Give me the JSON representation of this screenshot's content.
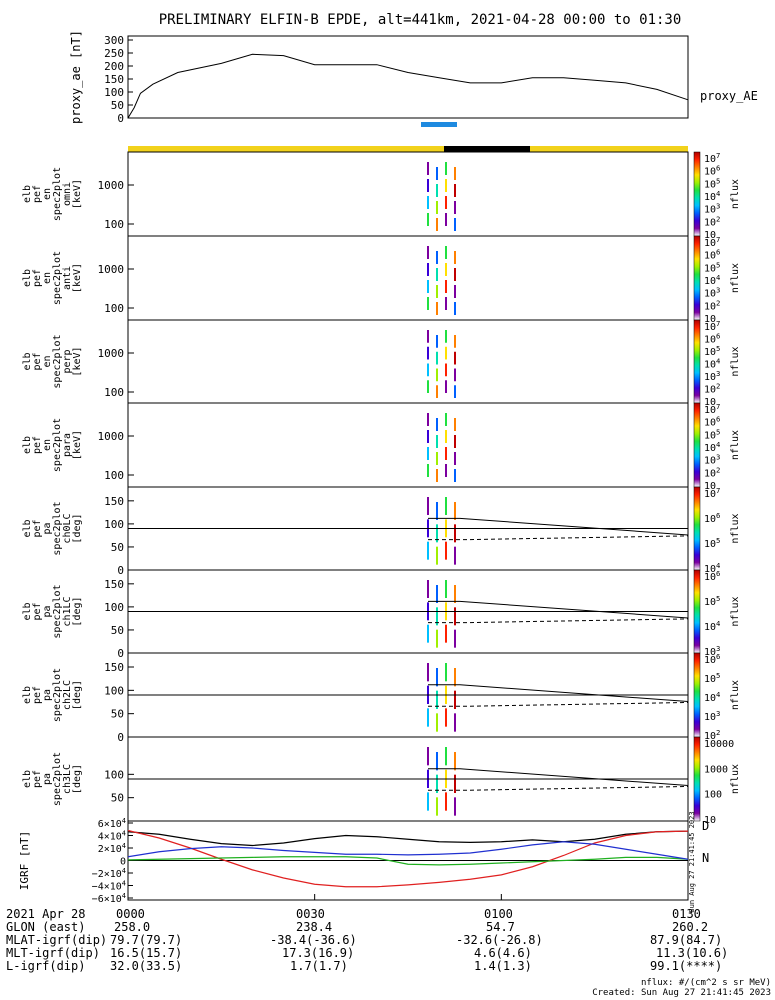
{
  "title": "PRELIMINARY ELFIN-B EPDE, alt=441km, 2021-04-28 00:00 to 01:30",
  "colors": {
    "yellow_bar": "#f2d21c",
    "eclipse_bar": "#000000",
    "science_bar": "#1e8ae0",
    "bx": "#e02020",
    "by": "#20b020",
    "bz": "#2030d0",
    "btot": "#000000"
  },
  "chart_data": [
    {
      "type": "line",
      "id": "proxy_ae",
      "ylabel": "proxy_ae [nT]",
      "series_label": "proxy_AE",
      "yticks": [
        "300",
        "250",
        "200",
        "150",
        "100",
        "50",
        "0"
      ],
      "ylim": [
        0,
        300
      ],
      "x_minutes": [
        0,
        1,
        2,
        4,
        8,
        15,
        20,
        25,
        30,
        35,
        40,
        45,
        50,
        55,
        60,
        65,
        70,
        75,
        80,
        85,
        90
      ],
      "values": [
        0,
        40,
        95,
        130,
        175,
        210,
        245,
        240,
        205,
        205,
        205,
        175,
        155,
        135,
        135,
        155,
        155,
        145,
        135,
        110,
        70
      ]
    },
    {
      "type": "heatmap",
      "id": "en-omni",
      "ylabel": "elb pef en spec2plot omni [keV]",
      "yticks": [
        "1000",
        "100"
      ],
      "colorbar_label": "nflux",
      "colorbar_ticks": [
        "10^7",
        "10^6",
        "10^5",
        "10^4",
        "10^3",
        "10^2",
        "10"
      ]
    },
    {
      "type": "heatmap",
      "id": "en-anti",
      "ylabel": "elb pef en spec2plot anti [keV]",
      "yticks": [
        "1000",
        "100"
      ],
      "colorbar_label": "nflux",
      "colorbar_ticks": [
        "10^7",
        "10^6",
        "10^5",
        "10^4",
        "10^3",
        "10^2",
        "10"
      ]
    },
    {
      "type": "heatmap",
      "id": "en-perp",
      "ylabel": "elb pef en spec2plot perp [keV]",
      "yticks": [
        "1000",
        "100"
      ],
      "colorbar_label": "nflux",
      "colorbar_ticks": [
        "10^7",
        "10^6",
        "10^5",
        "10^4",
        "10^3",
        "10^2",
        "10"
      ]
    },
    {
      "type": "heatmap",
      "id": "en-para",
      "ylabel": "elb pef en spec2plot para [keV]",
      "yticks": [
        "1000",
        "100"
      ],
      "colorbar_label": "nflux",
      "colorbar_ticks": [
        "10^7",
        "10^6",
        "10^5",
        "10^4",
        "10^3",
        "10^2",
        "10"
      ]
    },
    {
      "type": "heatmap",
      "id": "pa-ch0LC",
      "ylabel": "elb pef pa spec2plot ch0LC [deg]",
      "yticks": [
        "150",
        "100",
        "50",
        "0"
      ],
      "ylim": [
        0,
        180
      ],
      "colorbar_label": "nflux",
      "colorbar_ticks": [
        "10^7",
        "10^6",
        "10^5",
        "10^4"
      ]
    },
    {
      "type": "heatmap",
      "id": "pa-ch1LC",
      "ylabel": "elb pef pa spec2plot ch1LC [deg]",
      "yticks": [
        "150",
        "100",
        "50",
        "0"
      ],
      "ylim": [
        0,
        180
      ],
      "colorbar_label": "nflux",
      "colorbar_ticks": [
        "10^6",
        "10^5",
        "10^4",
        "10^3"
      ]
    },
    {
      "type": "heatmap",
      "id": "pa-ch2LC",
      "ylabel": "elb pef pa spec2plot ch2LC [deg]",
      "yticks": [
        "150",
        "100",
        "50",
        "0"
      ],
      "ylim": [
        0,
        180
      ],
      "colorbar_label": "nflux",
      "colorbar_ticks": [
        "10^6",
        "10^5",
        "10^4",
        "10^3",
        "10^2"
      ]
    },
    {
      "type": "heatmap",
      "id": "pa-ch3LC",
      "ylabel": "elb pef pa spec2plot ch3LC [deg]",
      "yticks": [
        "100",
        "50"
      ],
      "ylim": [
        0,
        180
      ],
      "colorbar_label": "nflux",
      "colorbar_ticks": [
        "10000",
        "1000",
        "100",
        "10"
      ]
    },
    {
      "type": "line",
      "id": "igrf",
      "ylabel": "IGRF [nT]",
      "yticks": [
        "6×10^4",
        "4×10^4",
        "2×10^4",
        "0",
        "−2×10^4",
        "−4×10^4",
        "−6×10^4"
      ],
      "ylim": [
        -60000,
        60000
      ],
      "legend": [
        "D",
        "N"
      ],
      "x_minutes": [
        0,
        5,
        10,
        15,
        20,
        25,
        30,
        35,
        40,
        45,
        50,
        55,
        60,
        65,
        70,
        75,
        80,
        85,
        90
      ],
      "series": [
        {
          "name": "total",
          "color": "#000000",
          "values": [
            46000,
            42000,
            34000,
            27000,
            24000,
            28000,
            35000,
            40000,
            38000,
            34000,
            30000,
            29000,
            30000,
            33000,
            30000,
            34000,
            42000,
            46000,
            47000
          ]
        },
        {
          "name": "x",
          "color": "#e02020",
          "values": [
            48000,
            36000,
            20000,
            2000,
            -15000,
            -28000,
            -38000,
            -42000,
            -42000,
            -39000,
            -35000,
            -30000,
            -23000,
            -10000,
            8000,
            28000,
            40000,
            46000,
            47000
          ]
        },
        {
          "name": "y",
          "color": "#20b020",
          "values": [
            1000,
            2000,
            3000,
            4000,
            5000,
            6000,
            6000,
            6000,
            4000,
            -6000,
            -7000,
            -6000,
            -4000,
            -2000,
            0,
            2000,
            5000,
            5000,
            2000
          ]
        },
        {
          "name": "z",
          "color": "#2030d0",
          "values": [
            6000,
            14000,
            19000,
            22000,
            20000,
            16000,
            13000,
            10000,
            10000,
            9000,
            10000,
            12000,
            18000,
            25000,
            30000,
            26000,
            18000,
            10000,
            2000
          ]
        }
      ]
    }
  ],
  "bottom": {
    "rows": [
      {
        "label": "2021 Apr 28",
        "values": [
          "0000",
          "0030",
          "0100",
          "0130"
        ]
      },
      {
        "label": "GLON (east)",
        "values": [
          "258.0",
          "238.4",
          "54.7",
          "260.2"
        ]
      },
      {
        "label": "MLAT-igrf(dip)",
        "values": [
          "79.7(79.7)",
          "-38.4(-36.6)",
          "-32.6(-26.8)",
          "87.9(84.7)"
        ]
      },
      {
        "label": "MLT-igrf(dip)",
        "values": [
          "16.5(15.7)",
          "17.3(16.9)",
          "4.6(4.6)",
          "11.3(10.6)"
        ]
      },
      {
        "label": "L-igrf(dip)",
        "values": [
          "32.0(33.5)",
          "1.7(1.7)",
          "1.4(1.3)",
          "99.1(****)"
        ]
      }
    ],
    "footer_unit": "nflux: #/(cm^2 s sr MeV)",
    "footer_created": "Created: Sun Aug 27 21:41:45 2023",
    "side_stamp": "Sun Aug 27 21:41:45 2023"
  }
}
